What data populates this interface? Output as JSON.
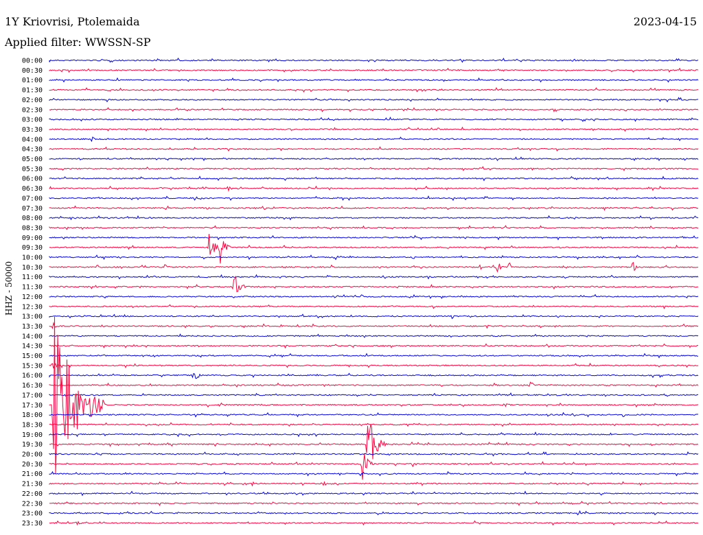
{
  "header": {
    "station": "1Y Kriovrisi, Ptolemaida",
    "date": "2023-04-15",
    "filter": "Applied filter: WWSSN-SP"
  },
  "axis": {
    "ylabel": "HHZ - 50000"
  },
  "colors": {
    "blue": "#0000e6",
    "red": "#ff003c"
  },
  "chart_data": {
    "type": "line",
    "title": "",
    "rows": [
      "00:00",
      "00:30",
      "01:00",
      "01:30",
      "02:00",
      "02:30",
      "03:00",
      "03:30",
      "04:00",
      "04:30",
      "05:00",
      "05:30",
      "06:00",
      "06:30",
      "07:00",
      "07:30",
      "08:00",
      "08:30",
      "09:00",
      "09:30",
      "10:00",
      "10:30",
      "11:00",
      "11:30",
      "12:00",
      "12:30",
      "13:00",
      "13:30",
      "14:00",
      "14:30",
      "15:00",
      "15:30",
      "16:00",
      "16:30",
      "17:00",
      "17:30",
      "18:00",
      "18:30",
      "19:00",
      "19:30",
      "20:00",
      "20:30",
      "21:00",
      "21:30",
      "22:00",
      "22:30",
      "23:00",
      "23:30"
    ],
    "row_colors": [
      "blue",
      "red"
    ],
    "events": [
      {
        "row": "09:30",
        "pos": 0.245,
        "amp": 28,
        "dur": 0.02
      },
      {
        "row": "09:30",
        "pos": 0.262,
        "amp": 32,
        "dur": 0.018
      },
      {
        "row": "11:30",
        "pos": 0.284,
        "amp": 30,
        "dur": 0.02
      },
      {
        "row": "10:00",
        "pos": 0.44,
        "amp": 6,
        "dur": 0.02
      },
      {
        "row": "10:00",
        "pos": 0.56,
        "amp": 5,
        "dur": 0.012
      },
      {
        "row": "10:30",
        "pos": 0.177,
        "amp": 6,
        "dur": 0.012
      },
      {
        "row": "10:30",
        "pos": 0.69,
        "amp": 16,
        "dur": 0.01
      },
      {
        "row": "10:30",
        "pos": 0.708,
        "amp": 18,
        "dur": 0.006
      },
      {
        "row": "10:30",
        "pos": 0.897,
        "amp": 14,
        "dur": 0.014
      },
      {
        "row": "06:30",
        "pos": 0.275,
        "amp": 8,
        "dur": 0.012
      },
      {
        "row": "16:00",
        "pos": 0.222,
        "amp": 14,
        "dur": 0.016
      },
      {
        "row": "16:30",
        "pos": 0.74,
        "amp": 9,
        "dur": 0.014
      },
      {
        "row": "17:30",
        "pos": 0.7,
        "amp": 9,
        "dur": 0.012
      },
      {
        "row": "19:30",
        "pos": 0.49,
        "amp": 52,
        "dur": 0.03
      },
      {
        "row": "20:30",
        "pos": 0.482,
        "amp": 28,
        "dur": 0.02
      },
      {
        "row": "20:30",
        "pos": 0.56,
        "amp": 6,
        "dur": 0.012
      },
      {
        "row": "21:30",
        "pos": 0.42,
        "amp": 4,
        "dur": 0.04
      },
      {
        "row": "04:00",
        "pos": 0.065,
        "amp": 5,
        "dur": 0.01
      },
      {
        "row": "13:00",
        "pos": 0.62,
        "amp": 4,
        "dur": 0.016
      },
      {
        "row": "13:30",
        "pos": 0.08,
        "amp": 4,
        "dur": 0.01
      },
      {
        "row": "22:30",
        "pos": 0.875,
        "amp": 4,
        "dur": 0.01
      },
      {
        "row": "23:30",
        "pos": 0.04,
        "amp": 4,
        "dur": 0.02
      },
      {
        "row": "17:30",
        "pos": 0.006,
        "amp": 170,
        "dur": 0.08
      },
      {
        "row": "13:30",
        "pos": 0.004,
        "amp": 10,
        "dur": 0.01
      },
      {
        "row": "15:30",
        "pos": 0.004,
        "amp": 14,
        "dur": 0.01
      }
    ]
  }
}
